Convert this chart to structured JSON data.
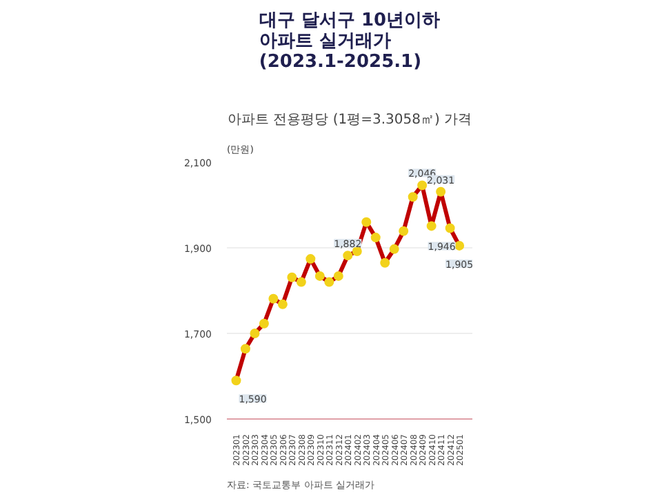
{
  "chart_data": {
    "type": "line",
    "title": "대구 달서구 10년이하\n아파트 실거래가\n(2023.1-2025.1)",
    "subtitle": "아파트 전용평당 (1평=3.3058㎡) 가격",
    "ylabel": "(만원)",
    "categories": [
      "202301",
      "202302",
      "202303",
      "202304",
      "202305",
      "202306",
      "202307",
      "202308",
      "202309",
      "202310",
      "202311",
      "202312",
      "202401",
      "202402",
      "202403",
      "202404",
      "202405",
      "202406",
      "202407",
      "202408",
      "202409",
      "202410",
      "202411",
      "202412",
      "202501"
    ],
    "series": [
      {
        "color": "#c00000",
        "values": [
          1590,
          1664,
          1700,
          1723,
          1781,
          1768,
          1831,
          1820,
          1874,
          1834,
          1820,
          1834,
          1882,
          1892,
          1960,
          1924,
          1865,
          1897,
          1939,
          2019,
          2046,
          1951,
          2031,
          1946,
          1905
        ],
        "value_labels": [
          "1,590",
          null,
          null,
          null,
          null,
          null,
          null,
          null,
          null,
          null,
          null,
          null,
          "1,882",
          null,
          null,
          null,
          null,
          null,
          null,
          null,
          "2,046",
          null,
          "2,031",
          "1,946",
          "1,905"
        ]
      }
    ],
    "ylim": [
      1500,
      2100
    ],
    "yticks": [
      {
        "value": 1500,
        "label": "1,500"
      },
      {
        "value": 1700,
        "label": "1,700"
      },
      {
        "value": 1900,
        "label": "1,900"
      },
      {
        "value": 2100,
        "label": "2,100"
      }
    ],
    "grid": "y",
    "marker": "circle",
    "line_style": "solid",
    "annotations": [
      "자료: 국토교통부 아파트 실거래가"
    ]
  }
}
